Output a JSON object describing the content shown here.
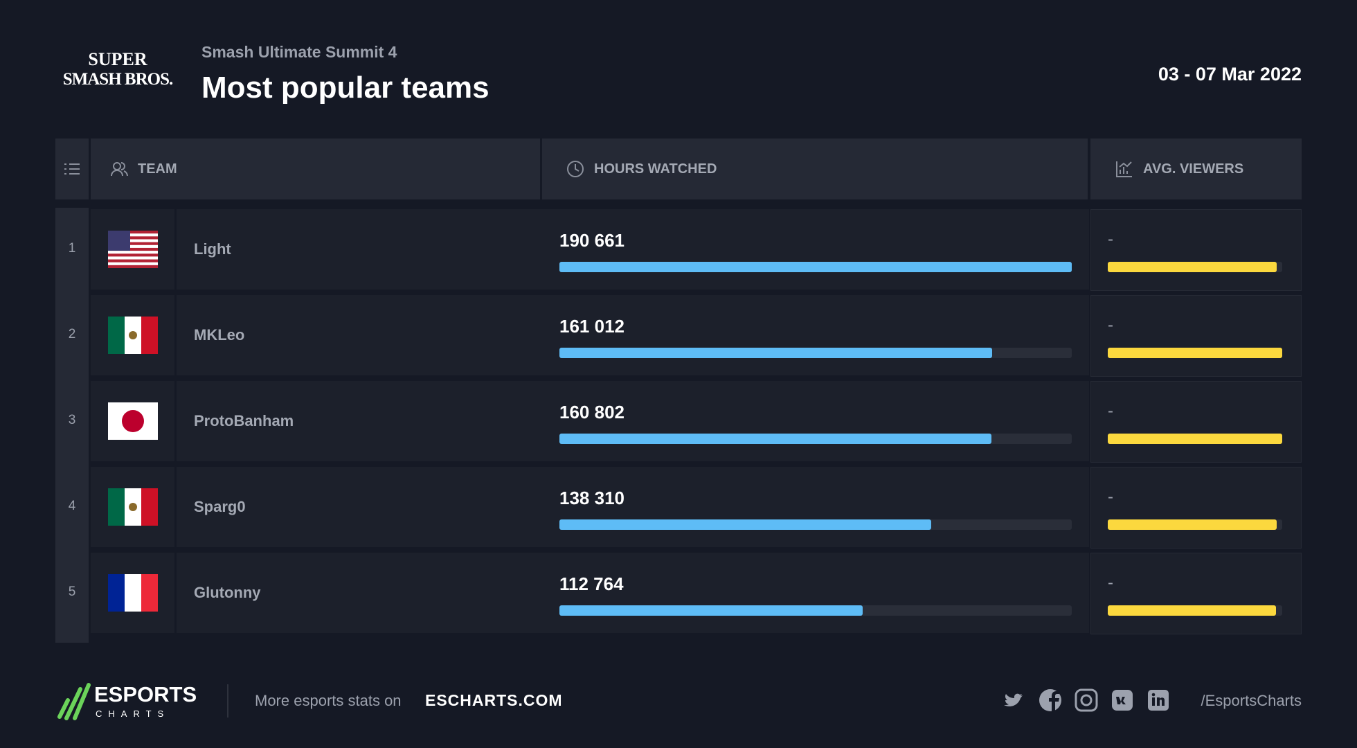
{
  "header": {
    "logo_top": "SUPER",
    "logo_bottom": "SMASH BROS.",
    "subtitle": "Smash Ultimate Summit 4",
    "title": "Most popular teams",
    "date": "03 - 07 Mar 2022"
  },
  "table": {
    "columns": [
      "TEAM",
      "HOURS WATCHED",
      "AVG. VIEWERS"
    ],
    "rows": [
      {
        "rank": 1,
        "team": "Light",
        "hours": {
          "value": 190661,
          "label": "190 661"
        },
        "avg_viewers": "-"
      },
      {
        "rank": 2,
        "team": "MKLeo",
        "hours": {
          "value": 161012,
          "label": "161 012"
        },
        "avg_viewers": "-"
      },
      {
        "rank": 3,
        "team": "ProtoBanham",
        "hours": {
          "value": 160802,
          "label": "160 802"
        },
        "avg_viewers": "-"
      },
      {
        "rank": 4,
        "team": "Sparg0",
        "hours": {
          "value": 138310,
          "label": "138 310"
        },
        "avg_viewers": "-"
      },
      {
        "rank": 5,
        "team": "Glutonny",
        "hours": {
          "value": 112764,
          "label": "112 764"
        },
        "avg_viewers": "-"
      }
    ]
  },
  "footer": {
    "brand_top": "ESPORTS",
    "brand_bottom": "CHARTS",
    "cta": "More esports stats on",
    "site": "ESCHARTS.COM",
    "handle": "/EsportsCharts"
  }
}
